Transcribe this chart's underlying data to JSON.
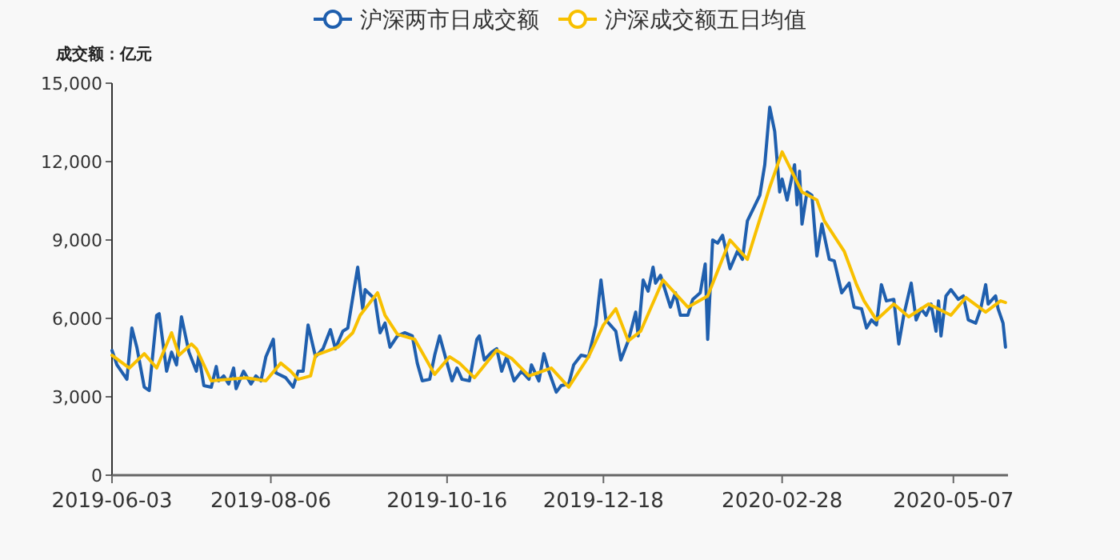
{
  "chart_data": {
    "type": "line",
    "ylabel": "成交额：亿元",
    "xlim": [
      "2019-06-03",
      "2020-05-29"
    ],
    "xticks": [
      "2019-06-03",
      "2019-08-06",
      "2019-10-16",
      "2019-12-18",
      "2020-02-28",
      "2020-05-07"
    ],
    "ylim": [
      0,
      15000
    ],
    "yticks": [
      0,
      {
        "value": 3000,
        "label": "3,000"
      },
      {
        "value": 6000,
        "label": "6,000"
      },
      {
        "value": 9000,
        "label": "9,000"
      },
      {
        "value": 12000,
        "label": "12,000"
      },
      {
        "value": 15000,
        "label": "15,000"
      }
    ],
    "grid": false,
    "legend": "top",
    "marker": "none",
    "line_style": "solid",
    "series": [
      {
        "name": "沪深两市日成交额",
        "color": "#1f5fae",
        "x": [
          "2019-06-03",
          "2019-06-05",
          "2019-06-09",
          "2019-06-11",
          "2019-06-13",
          "2019-06-16",
          "2019-06-18",
          "2019-06-21",
          "2019-06-22",
          "2019-06-25",
          "2019-06-27",
          "2019-06-29",
          "2019-07-01",
          "2019-07-04",
          "2019-07-07",
          "2019-07-08",
          "2019-07-10",
          "2019-07-13",
          "2019-07-15",
          "2019-07-16",
          "2019-07-18",
          "2019-07-20",
          "2019-07-22",
          "2019-07-23",
          "2019-07-26",
          "2019-07-29",
          "2019-07-31",
          "2019-08-02",
          "2019-08-04",
          "2019-08-07",
          "2019-08-08",
          "2019-08-12",
          "2019-08-15",
          "2019-08-17",
          "2019-08-19",
          "2019-08-21",
          "2019-08-24",
          "2019-08-27",
          "2019-08-30",
          "2019-09-01",
          "2019-09-04",
          "2019-09-06",
          "2019-09-10",
          "2019-09-12",
          "2019-09-13",
          "2019-09-17",
          "2019-09-19",
          "2019-09-21",
          "2019-09-23",
          "2019-09-26",
          "2019-09-29",
          "2019-10-02",
          "2019-10-04",
          "2019-10-06",
          "2019-10-09",
          "2019-10-11",
          "2019-10-13",
          "2019-10-16",
          "2019-10-18",
          "2019-10-20",
          "2019-10-22",
          "2019-10-25",
          "2019-10-28",
          "2019-10-29",
          "2019-10-31",
          "2019-11-03",
          "2019-11-05",
          "2019-11-07",
          "2019-11-09",
          "2019-11-12",
          "2019-11-15",
          "2019-11-18",
          "2019-11-19",
          "2019-11-22",
          "2019-11-24",
          "2019-11-26",
          "2019-11-29",
          "2019-12-01",
          "2019-12-04",
          "2019-12-06",
          "2019-12-09",
          "2019-12-12",
          "2019-12-15",
          "2019-12-17",
          "2019-12-19",
          "2019-12-23",
          "2019-12-25",
          "2019-12-28",
          "2019-12-31",
          "2020-01-01",
          "2020-01-03",
          "2020-01-05",
          "2020-01-07",
          "2020-01-08",
          "2020-01-10",
          "2020-01-14",
          "2020-01-16",
          "2020-01-18",
          "2020-01-21",
          "2020-01-23",
          "2020-01-26",
          "2020-01-28",
          "2020-01-29",
          "2020-01-31",
          "2020-02-02",
          "2020-02-04",
          "2020-02-07",
          "2020-02-10",
          "2020-02-12",
          "2020-02-14",
          "2020-02-19",
          "2020-02-21",
          "2020-02-23",
          "2020-02-25",
          "2020-02-27",
          "2020-02-28",
          "2020-03-01",
          "2020-03-04",
          "2020-03-05",
          "2020-03-06",
          "2020-03-07",
          "2020-03-09",
          "2020-03-11",
          "2020-03-13",
          "2020-03-15",
          "2020-03-18",
          "2020-03-20",
          "2020-03-23",
          "2020-03-26",
          "2020-03-28",
          "2020-03-31",
          "2020-04-02",
          "2020-04-04",
          "2020-04-06",
          "2020-04-08",
          "2020-04-10",
          "2020-04-13",
          "2020-04-15",
          "2020-04-17",
          "2020-04-20",
          "2020-04-22",
          "2020-04-24",
          "2020-04-26",
          "2020-04-28",
          "2020-04-30",
          "2020-05-01",
          "2020-05-02",
          "2020-05-04",
          "2020-05-06",
          "2020-05-09",
          "2020-05-11",
          "2020-05-13",
          "2020-05-16",
          "2020-05-18",
          "2020-05-20",
          "2020-05-21",
          "2020-05-24",
          "2020-05-25",
          "2020-05-27",
          "2020-05-28"
        ],
        "values": [
          4775,
          4220,
          3670,
          5630,
          4900,
          3370,
          3240,
          6120,
          6180,
          3980,
          4710,
          4220,
          6060,
          4710,
          3980,
          4590,
          3430,
          3370,
          4160,
          3610,
          3800,
          3490,
          4100,
          3310,
          3980,
          3490,
          3800,
          3610,
          4530,
          5200,
          3920,
          3730,
          3370,
          3980,
          3980,
          5750,
          4530,
          4840,
          5570,
          4840,
          5510,
          5630,
          7960,
          6370,
          7100,
          6730,
          5450,
          5820,
          4900,
          5330,
          5450,
          5330,
          4290,
          3610,
          3670,
          4590,
          5330,
          4290,
          3610,
          4100,
          3670,
          3610,
          5200,
          5330,
          4410,
          4710,
          4840,
          3980,
          4530,
          3610,
          3980,
          3670,
          4220,
          3610,
          4650,
          3980,
          3180,
          3430,
          3490,
          4220,
          4590,
          4530,
          5750,
          7470,
          5940,
          5510,
          4410,
          5140,
          6240,
          5330,
          7470,
          7040,
          7960,
          7350,
          7650,
          6430,
          6980,
          6120,
          6120,
          6730,
          6980,
          8080,
          5200,
          9000,
          8880,
          9180,
          7900,
          8570,
          8260,
          9730,
          10710,
          11880,
          14080,
          13160,
          10840,
          11330,
          10530,
          11880,
          10350,
          11630,
          9610,
          10840,
          10710,
          8390,
          9610,
          8260,
          8200,
          6980,
          7350,
          6430,
          6370,
          5630,
          5940,
          5750,
          7290,
          6670,
          6730,
          5020,
          6120,
          7350,
          5940,
          6370,
          6120,
          6550,
          5510,
          6670,
          5330,
          6860,
          7100,
          6730,
          6860,
          5940,
          5820,
          6370,
          7290,
          6550,
          6860,
          6370,
          5820,
          4900
        ]
      },
      {
        "name": "沪深成交额五日均值",
        "color": "#f8c000",
        "x": [
          "2019-06-03",
          "2019-06-10",
          "2019-06-16",
          "2019-06-21",
          "2019-06-27",
          "2019-06-30",
          "2019-07-05",
          "2019-07-07",
          "2019-07-13",
          "2019-07-20",
          "2019-07-27",
          "2019-08-04",
          "2019-08-10",
          "2019-08-14",
          "2019-08-17",
          "2019-08-22",
          "2019-08-24",
          "2019-09-02",
          "2019-09-08",
          "2019-09-11",
          "2019-09-18",
          "2019-09-21",
          "2019-09-26",
          "2019-10-03",
          "2019-10-11",
          "2019-10-17",
          "2019-10-21",
          "2019-10-27",
          "2019-11-05",
          "2019-11-11",
          "2019-11-18",
          "2019-11-27",
          "2019-12-04",
          "2019-12-12",
          "2019-12-18",
          "2019-12-23",
          "2019-12-28",
          "2020-01-02",
          "2020-01-11",
          "2020-01-21",
          "2020-01-29",
          "2020-02-07",
          "2020-02-14",
          "2020-02-23",
          "2020-02-28",
          "2020-03-07",
          "2020-03-13",
          "2020-03-16",
          "2020-03-24",
          "2020-03-29",
          "2020-04-01",
          "2020-04-06",
          "2020-04-13",
          "2020-04-19",
          "2020-04-27",
          "2020-05-06",
          "2020-05-12",
          "2020-05-20",
          "2020-05-26",
          "2020-05-28"
        ],
        "values": [
          4590,
          4100,
          4650,
          4100,
          5450,
          4590,
          5020,
          4840,
          3610,
          3670,
          3730,
          3610,
          4290,
          3980,
          3670,
          3800,
          4590,
          4900,
          5450,
          6120,
          6980,
          6120,
          5390,
          5200,
          3860,
          4530,
          4290,
          3730,
          4780,
          4470,
          3800,
          4100,
          3370,
          4530,
          5750,
          6370,
          5140,
          5510,
          7470,
          6430,
          6860,
          9000,
          8260,
          11020,
          12370,
          10840,
          10530,
          9730,
          8570,
          7290,
          6670,
          5940,
          6550,
          6060,
          6550,
          6120,
          6800,
          6240,
          6670,
          6610
        ]
      }
    ]
  }
}
